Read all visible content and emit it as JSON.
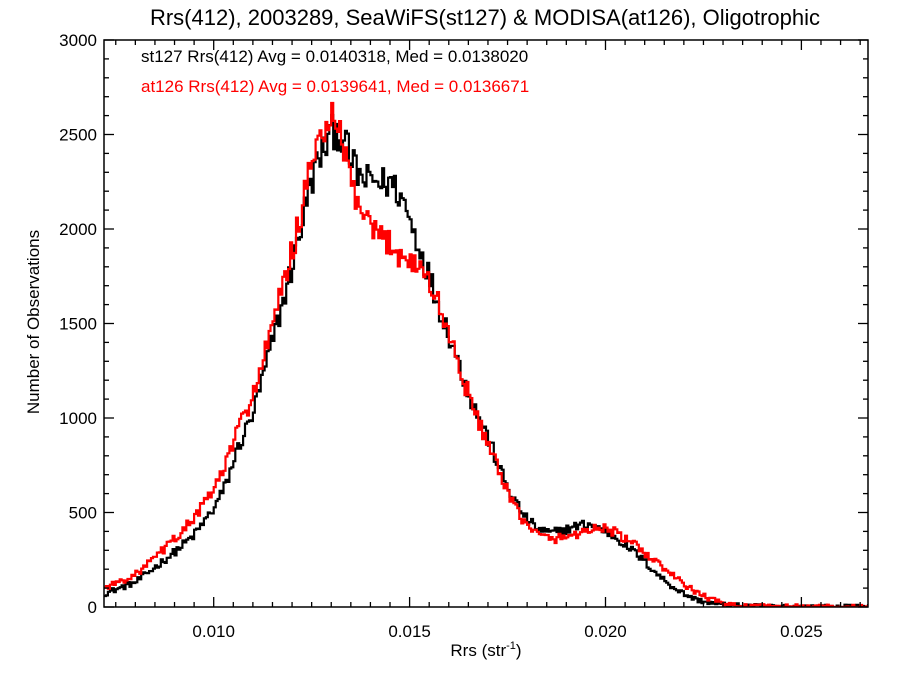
{
  "chart_data": {
    "type": "line",
    "title": "Rrs(412), 2003289, SeaWiFS(st127) & MODISA(at126), Oligotrophic",
    "xlabel": "Rrs (str",
    "xlabel_sup": "-1",
    "xlabel_close": ")",
    "ylabel": "Number of Observations",
    "xlim": [
      0.0072,
      0.0267
    ],
    "ylim": [
      0,
      3000
    ],
    "xticks": [
      0.01,
      0.015,
      0.02,
      0.025
    ],
    "xtick_labels": [
      "0.010",
      "0.015",
      "0.020",
      "0.025"
    ],
    "yticks": [
      0,
      500,
      1000,
      1500,
      2000,
      2500,
      3000
    ],
    "ytick_labels": [
      "0",
      "500",
      "1000",
      "1500",
      "2000",
      "2500",
      "3000"
    ],
    "legend": [
      {
        "text": "st127 Rrs(412) Avg = 0.0140318, Med = 0.0138020",
        "color": "#000000"
      },
      {
        "text": "at126 Rrs(412) Avg = 0.0139641, Med = 0.0136671",
        "color": "#ff0000"
      }
    ],
    "legend_position": "top-left",
    "grid": false,
    "histogram_step": true,
    "series": [
      {
        "name": "st127",
        "color": "#000000",
        "x": [
          0.0072,
          0.008,
          0.0085,
          0.009,
          0.0095,
          0.01,
          0.0103,
          0.0106,
          0.011,
          0.0113,
          0.0116,
          0.012,
          0.0123,
          0.0126,
          0.0129,
          0.0131,
          0.0133,
          0.0135,
          0.0137,
          0.0139,
          0.0141,
          0.0143,
          0.0145,
          0.0147,
          0.0149,
          0.0151,
          0.0153,
          0.0155,
          0.0157,
          0.016,
          0.0163,
          0.0166,
          0.017,
          0.0173,
          0.0176,
          0.018,
          0.0183,
          0.0186,
          0.019,
          0.0193,
          0.0196,
          0.0199,
          0.0202,
          0.0205,
          0.0208,
          0.0211,
          0.0214,
          0.0217,
          0.022,
          0.0223,
          0.0227,
          0.0231,
          0.0236,
          0.0245,
          0.0267
        ],
        "y": [
          70,
          130,
          210,
          290,
          380,
          520,
          640,
          830,
          1020,
          1250,
          1480,
          1800,
          2080,
          2330,
          2460,
          2530,
          2480,
          2370,
          2280,
          2250,
          2260,
          2240,
          2250,
          2200,
          2120,
          1990,
          1880,
          1750,
          1620,
          1450,
          1260,
          1080,
          900,
          730,
          590,
          460,
          410,
          390,
          410,
          430,
          440,
          410,
          380,
          330,
          280,
          220,
          160,
          110,
          70,
          40,
          20,
          10,
          5,
          2,
          0
        ]
      },
      {
        "name": "at126",
        "color": "#ff0000",
        "x": [
          0.0072,
          0.008,
          0.0085,
          0.009,
          0.0095,
          0.01,
          0.0103,
          0.0106,
          0.011,
          0.0113,
          0.0116,
          0.012,
          0.0123,
          0.0126,
          0.0129,
          0.0131,
          0.0133,
          0.0135,
          0.0137,
          0.0139,
          0.0141,
          0.0143,
          0.0145,
          0.0147,
          0.0149,
          0.0151,
          0.0153,
          0.0155,
          0.0157,
          0.016,
          0.0163,
          0.0166,
          0.017,
          0.0173,
          0.0176,
          0.018,
          0.0183,
          0.0186,
          0.019,
          0.0193,
          0.0196,
          0.0199,
          0.0202,
          0.0205,
          0.0208,
          0.0211,
          0.0214,
          0.0217,
          0.022,
          0.0223,
          0.0227,
          0.0231,
          0.0236,
          0.0245,
          0.0267
        ],
        "y": [
          100,
          170,
          260,
          360,
          470,
          620,
          750,
          930,
          1120,
          1330,
          1560,
          1880,
          2150,
          2420,
          2580,
          2560,
          2430,
          2260,
          2120,
          2020,
          1970,
          1950,
          1930,
          1880,
          1840,
          1830,
          1790,
          1720,
          1620,
          1450,
          1250,
          1060,
          870,
          700,
          560,
          430,
          380,
          360,
          370,
          390,
          410,
          420,
          400,
          360,
          320,
          270,
          220,
          170,
          120,
          80,
          40,
          15,
          5,
          2,
          0
        ]
      }
    ]
  }
}
